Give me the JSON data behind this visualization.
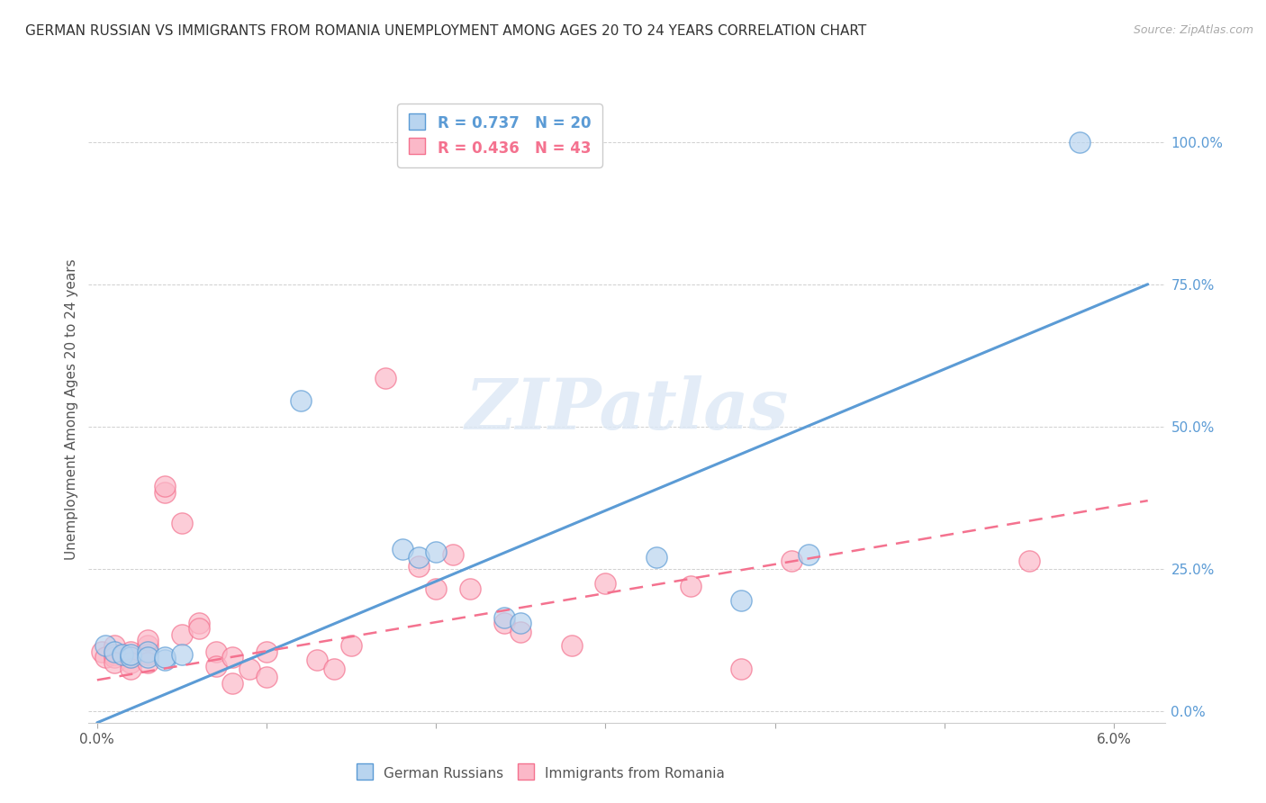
{
  "title": "GERMAN RUSSIAN VS IMMIGRANTS FROM ROMANIA UNEMPLOYMENT AMONG AGES 20 TO 24 YEARS CORRELATION CHART",
  "source": "Source: ZipAtlas.com",
  "ylabel": "Unemployment Among Ages 20 to 24 years",
  "label_blue": "German Russians",
  "label_pink": "Immigrants from Romania",
  "watermark": "ZIPatlas",
  "legend_r1": "R = 0.737",
  "legend_n1": "N = 20",
  "legend_r2": "R = 0.436",
  "legend_n2": "N = 43",
  "blue_color": "#5b9bd5",
  "pink_color": "#f4728f",
  "blue_scatter_fc": "#b8d4ef",
  "pink_scatter_fc": "#fbb8c8",
  "ylim": [
    -0.02,
    1.08
  ],
  "xlim": [
    -0.0005,
    0.063
  ],
  "x_ticks": [
    0.0,
    0.01,
    0.02,
    0.03,
    0.04,
    0.05,
    0.06
  ],
  "x_tick_labels_show": [
    "0.0%",
    "",
    "",
    "",
    "",
    "",
    "6.0%"
  ],
  "y_ticks": [
    0.0,
    0.25,
    0.5,
    0.75,
    1.0
  ],
  "y_tick_labels": [
    "0.0%",
    "25.0%",
    "50.0%",
    "75.0%",
    "100.0%"
  ],
  "blue_line": [
    [
      0.0,
      -0.02
    ],
    [
      0.062,
      0.75
    ]
  ],
  "pink_line": [
    [
      0.0,
      0.055
    ],
    [
      0.062,
      0.37
    ]
  ],
  "blue_scatter": [
    [
      0.0005,
      0.115
    ],
    [
      0.001,
      0.105
    ],
    [
      0.0015,
      0.1
    ],
    [
      0.002,
      0.095
    ],
    [
      0.002,
      0.1
    ],
    [
      0.003,
      0.105
    ],
    [
      0.003,
      0.095
    ],
    [
      0.004,
      0.09
    ],
    [
      0.004,
      0.095
    ],
    [
      0.005,
      0.1
    ],
    [
      0.012,
      0.545
    ],
    [
      0.018,
      0.285
    ],
    [
      0.019,
      0.27
    ],
    [
      0.02,
      0.28
    ],
    [
      0.024,
      0.165
    ],
    [
      0.025,
      0.155
    ],
    [
      0.033,
      0.27
    ],
    [
      0.038,
      0.195
    ],
    [
      0.042,
      0.275
    ],
    [
      0.058,
      1.0
    ]
  ],
  "pink_scatter": [
    [
      0.0003,
      0.105
    ],
    [
      0.0005,
      0.095
    ],
    [
      0.001,
      0.115
    ],
    [
      0.001,
      0.1
    ],
    [
      0.001,
      0.095
    ],
    [
      0.001,
      0.085
    ],
    [
      0.002,
      0.105
    ],
    [
      0.002,
      0.095
    ],
    [
      0.002,
      0.085
    ],
    [
      0.002,
      0.075
    ],
    [
      0.003,
      0.115
    ],
    [
      0.003,
      0.1
    ],
    [
      0.003,
      0.125
    ],
    [
      0.003,
      0.085
    ],
    [
      0.004,
      0.385
    ],
    [
      0.004,
      0.395
    ],
    [
      0.005,
      0.33
    ],
    [
      0.005,
      0.135
    ],
    [
      0.006,
      0.155
    ],
    [
      0.006,
      0.145
    ],
    [
      0.007,
      0.105
    ],
    [
      0.007,
      0.08
    ],
    [
      0.008,
      0.095
    ],
    [
      0.008,
      0.05
    ],
    [
      0.009,
      0.075
    ],
    [
      0.01,
      0.06
    ],
    [
      0.01,
      0.105
    ],
    [
      0.013,
      0.09
    ],
    [
      0.014,
      0.075
    ],
    [
      0.015,
      0.115
    ],
    [
      0.017,
      0.585
    ],
    [
      0.019,
      0.255
    ],
    [
      0.02,
      0.215
    ],
    [
      0.021,
      0.275
    ],
    [
      0.022,
      0.215
    ],
    [
      0.024,
      0.155
    ],
    [
      0.025,
      0.14
    ],
    [
      0.028,
      0.115
    ],
    [
      0.03,
      0.225
    ],
    [
      0.035,
      0.22
    ],
    [
      0.038,
      0.075
    ],
    [
      0.041,
      0.265
    ],
    [
      0.055,
      0.265
    ]
  ]
}
